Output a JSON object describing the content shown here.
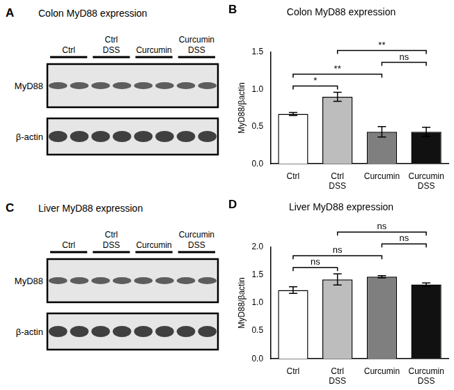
{
  "blots": [
    {
      "panel": "A",
      "title": "Colon MyD88 expression",
      "groups": [
        [
          "Ctrl"
        ],
        [
          "Ctrl",
          "DSS"
        ],
        [
          "Curcumin"
        ],
        [
          "Curcumin",
          "DSS"
        ]
      ],
      "rows": [
        "MyD88",
        "β-actin"
      ]
    },
    {
      "panel": "C",
      "title": "Liver MyD88 expression",
      "groups": [
        [
          "Ctrl"
        ],
        [
          "Ctrl",
          "DSS"
        ],
        [
          "Curcumin"
        ],
        [
          "Curcumin",
          "DSS"
        ]
      ],
      "rows": [
        "MyD88",
        "β-actin"
      ]
    }
  ],
  "chart_data": [
    {
      "panel": "B",
      "type": "bar",
      "title": "Colon MyD88 expression",
      "y_label": "MyD88/βactin",
      "categories": [
        [
          "Ctrl"
        ],
        [
          "Ctrl",
          "DSS"
        ],
        [
          "Curcumin"
        ],
        [
          "Curcumin",
          "DSS"
        ]
      ],
      "values": [
        0.67,
        0.9,
        0.43,
        0.43
      ],
      "errors": [
        0.02,
        0.06,
        0.07,
        0.06
      ],
      "colors": [
        "#ffffff",
        "#bdbdbd",
        "#7f7f7f",
        "#111111"
      ],
      "ylim": [
        0,
        1.5
      ],
      "yticks": [
        {
          "value": 0,
          "label": "0.0"
        },
        0.5,
        {
          "value": 1,
          "label": "1.0"
        },
        1.5
      ],
      "grid": false,
      "comparisons": [
        {
          "between": [
            0,
            1
          ],
          "label": "*"
        },
        {
          "between": [
            0,
            2
          ],
          "label": "**"
        },
        {
          "between": [
            2,
            3
          ],
          "label": "ns"
        },
        {
          "between": [
            1,
            3
          ],
          "label": "**"
        }
      ]
    },
    {
      "panel": "D",
      "type": "bar",
      "title": "Liver MyD88 expression",
      "y_label": "MyD88/βactin",
      "categories": [
        [
          "Ctrl"
        ],
        [
          "Ctrl",
          "DSS"
        ],
        [
          "Curcumin"
        ],
        [
          "Curcumin",
          "DSS"
        ]
      ],
      "values": [
        1.23,
        1.42,
        1.47,
        1.33
      ],
      "errors": [
        0.06,
        0.1,
        0.02,
        0.03
      ],
      "colors": [
        "#ffffff",
        "#bdbdbd",
        "#7f7f7f",
        "#111111"
      ],
      "ylim": [
        0,
        2
      ],
      "yticks": [
        {
          "value": 0,
          "label": "0.0"
        },
        0.5,
        {
          "value": 1,
          "label": "1.0"
        },
        1.5,
        {
          "value": 2,
          "label": "2.0"
        }
      ],
      "grid": false,
      "comparisons": [
        {
          "between": [
            0,
            1
          ],
          "label": "ns"
        },
        {
          "between": [
            0,
            2
          ],
          "label": "ns"
        },
        {
          "between": [
            2,
            3
          ],
          "label": "ns"
        },
        {
          "between": [
            1,
            3
          ],
          "label": "ns"
        }
      ]
    }
  ]
}
